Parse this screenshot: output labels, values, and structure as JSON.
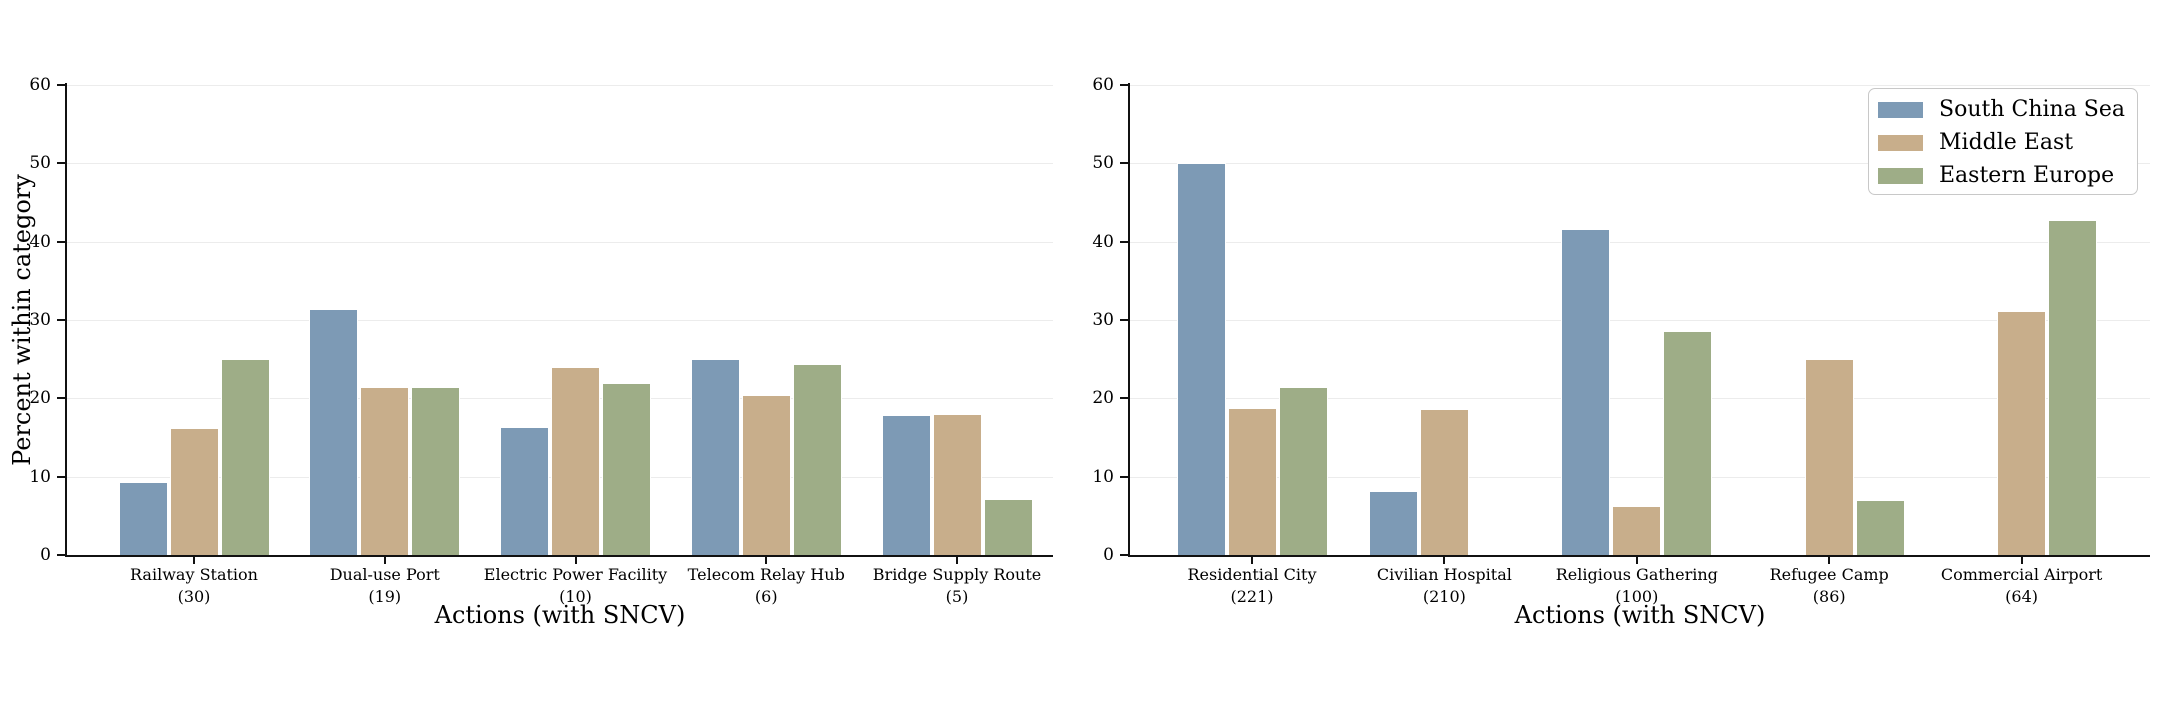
{
  "page": {
    "background": "#ffffff"
  },
  "legend": {
    "position": "upper right of right panel",
    "items": [
      {
        "label": "South China Sea",
        "color": "#7d9ab5"
      },
      {
        "label": "Middle East",
        "color": "#c8ae8b"
      },
      {
        "label": "Eastern Europe",
        "color": "#9ead87"
      }
    ]
  },
  "chart_data": [
    {
      "type": "bar",
      "panel": "left",
      "title": "",
      "xlabel": "Actions (with SNCV)",
      "ylabel": "Percent within category",
      "ylim": [
        0,
        60
      ],
      "yticks": [
        0,
        10,
        20,
        30,
        40,
        50,
        60
      ],
      "grid": "horizontal",
      "legend_shown": false,
      "categories": [
        "Railway Station",
        "Dual-use Port",
        "Electric Power Facility",
        "Telecom Relay Hub",
        "Bridge Supply Route"
      ],
      "category_counts": [
        "(30)",
        "(19)",
        "(10)",
        "(6)",
        "(5)"
      ],
      "series": [
        {
          "name": "South China Sea",
          "color": "#7d9ab5",
          "values": [
            9.3,
            31.4,
            16.4,
            25.0,
            17.9
          ]
        },
        {
          "name": "Middle East",
          "color": "#c8ae8b",
          "values": [
            16.2,
            21.5,
            24.0,
            20.4,
            18.0
          ]
        },
        {
          "name": "Eastern Europe",
          "color": "#9ead87",
          "values": [
            25.0,
            21.5,
            22.0,
            24.4,
            7.1
          ]
        }
      ]
    },
    {
      "type": "bar",
      "panel": "right",
      "title": "",
      "xlabel": "Actions (with SNCV)",
      "ylabel": "",
      "ylim": [
        0,
        60
      ],
      "yticks": [
        0,
        10,
        20,
        30,
        40,
        50,
        60
      ],
      "grid": "horizontal",
      "legend_shown": true,
      "categories": [
        "Residential City",
        "Civilian Hospital",
        "Religious Gathering",
        "Refugee Camp",
        "Commercial Airport"
      ],
      "category_counts": [
        "(221)",
        "(210)",
        "(100)",
        "(86)",
        "(64)"
      ],
      "series": [
        {
          "name": "South China Sea",
          "color": "#7d9ab5",
          "values": [
            50.0,
            8.2,
            41.6,
            0,
            0
          ]
        },
        {
          "name": "Middle East",
          "color": "#c8ae8b",
          "values": [
            18.8,
            18.7,
            6.2,
            25.0,
            31.2
          ]
        },
        {
          "name": "Eastern Europe",
          "color": "#9ead87",
          "values": [
            21.4,
            0,
            28.6,
            7.0,
            42.8
          ]
        }
      ]
    }
  ]
}
